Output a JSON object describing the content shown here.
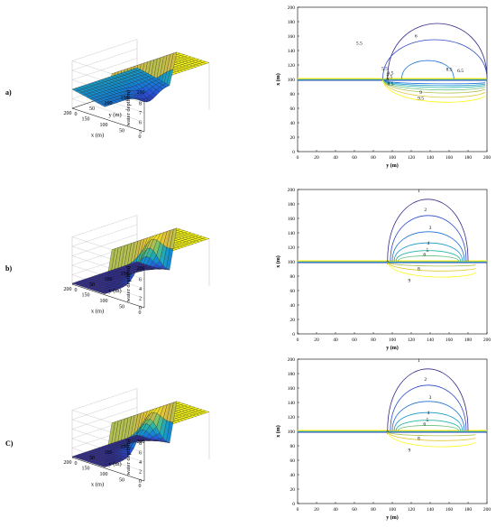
{
  "rows": [
    {
      "label": "a)",
      "contours": [
        "5.5",
        "6",
        "5.5",
        "6.5",
        "7",
        "7.5",
        "8",
        "8.5",
        "9",
        "9.5",
        "8.5",
        "6.5"
      ]
    },
    {
      "label": "b)",
      "contours": [
        "1",
        "2",
        "3",
        "4",
        "5",
        "6",
        "7",
        "8",
        "9"
      ]
    },
    {
      "label": "C)",
      "contours": [
        "1",
        "2",
        "3",
        "4",
        "5",
        "6",
        "7",
        "8",
        "9"
      ]
    }
  ],
  "chart_data": [
    {
      "type": "surface",
      "panel": "a) 3D water depth",
      "zlabel": "water depth(m)",
      "xlabel": "x (m)",
      "ylabel": "y (m)",
      "z_ticks": [
        "5",
        "6",
        "7",
        "8",
        "9",
        "10"
      ],
      "x_ticks": [
        "0",
        "50",
        "100",
        "150",
        "200"
      ],
      "y_ticks": [
        "0",
        "50",
        "100",
        "150",
        "200"
      ],
      "zlim": [
        5,
        10
      ]
    },
    {
      "type": "contour",
      "panel": "a) depth contours",
      "xlabel": "y (m)",
      "ylabel": "x (m)",
      "x_ticks": [
        "0",
        "20",
        "40",
        "60",
        "80",
        "100",
        "120",
        "140",
        "160",
        "180",
        "200"
      ],
      "y_ticks": [
        "0",
        "20",
        "40",
        "60",
        "80",
        "100",
        "120",
        "140",
        "160",
        "180",
        "200"
      ],
      "levels": [
        5.5,
        6,
        6.5,
        7,
        7.5,
        8,
        8.5,
        9,
        9.5
      ],
      "xlim": [
        0,
        200
      ],
      "ylim": [
        0,
        200
      ]
    },
    {
      "type": "surface",
      "panel": "b) 3D water depth",
      "zlabel": "water depth(m)",
      "xlabel": "x (m)",
      "ylabel": "y (m)",
      "z_ticks": [
        "0",
        "2",
        "4",
        "6",
        "8",
        "10"
      ],
      "x_ticks": [
        "0",
        "50",
        "100",
        "150",
        "200"
      ],
      "y_ticks": [
        "0",
        "50",
        "100",
        "150",
        "200"
      ],
      "zlim": [
        0,
        10
      ]
    },
    {
      "type": "contour",
      "panel": "b) depth contours",
      "xlabel": "y (m)",
      "ylabel": "x (m)",
      "x_ticks": [
        "0",
        "20",
        "40",
        "60",
        "80",
        "100",
        "120",
        "140",
        "160",
        "180",
        "200"
      ],
      "y_ticks": [
        "0",
        "20",
        "40",
        "60",
        "80",
        "100",
        "120",
        "140",
        "160",
        "180",
        "200"
      ],
      "levels": [
        1,
        2,
        3,
        4,
        5,
        6,
        7,
        8,
        9
      ],
      "xlim": [
        0,
        200
      ],
      "ylim": [
        0,
        200
      ]
    },
    {
      "type": "surface",
      "panel": "C) 3D water depth",
      "zlabel": "water depth(m)",
      "xlabel": "x (m)",
      "ylabel": "y (m)",
      "z_ticks": [
        "0",
        "2",
        "4",
        "6",
        "8",
        "10"
      ],
      "x_ticks": [
        "0",
        "50",
        "100",
        "150",
        "200"
      ],
      "y_ticks": [
        "0",
        "50",
        "100",
        "150",
        "200"
      ],
      "zlim": [
        0,
        10
      ]
    },
    {
      "type": "contour",
      "panel": "C) depth contours",
      "xlabel": "y (m)",
      "ylabel": "x (m)",
      "x_ticks": [
        "0",
        "20",
        "40",
        "60",
        "80",
        "100",
        "120",
        "140",
        "160",
        "180",
        "200"
      ],
      "y_ticks": [
        "0",
        "20",
        "40",
        "60",
        "80",
        "100",
        "120",
        "140",
        "160",
        "180",
        "200"
      ],
      "levels": [
        1,
        2,
        3,
        4,
        5,
        6,
        7,
        8,
        9
      ],
      "xlim": [
        0,
        200
      ],
      "ylim": [
        0,
        200
      ]
    }
  ]
}
